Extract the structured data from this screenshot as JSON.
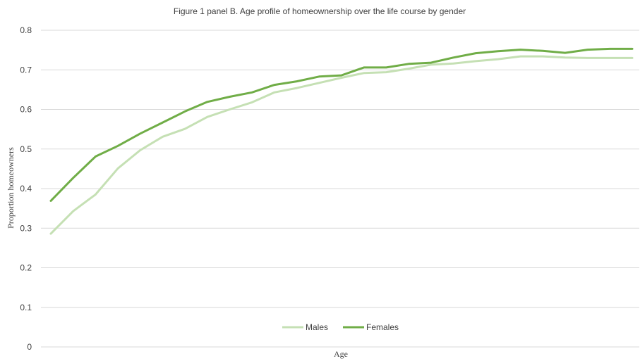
{
  "chart_data": {
    "type": "line",
    "title": "Figure 1 panel B. Age profile of homeownership over the life course by gender",
    "xlabel": "Age",
    "ylabel": "Proportion homeowners",
    "ylim": [
      0,
      0.8
    ],
    "yticks": [
      "0",
      "0.1",
      "0.2",
      "0.3",
      "0.4",
      "0.5",
      "0.6",
      "0.7",
      "0.8"
    ],
    "grid": true,
    "legend_position": "bottom",
    "colors": {
      "Males": "#c5e0b4",
      "Females": "#70ad47"
    },
    "series": [
      {
        "name": "Males",
        "values": [
          0.286,
          0.343,
          0.385,
          0.451,
          0.497,
          0.531,
          0.551,
          0.581,
          0.6,
          0.618,
          0.643,
          0.654,
          0.667,
          0.68,
          0.692,
          0.694,
          0.703,
          0.713,
          0.716,
          0.722,
          0.727,
          0.734,
          0.734,
          0.731,
          0.73,
          0.73,
          0.73
        ]
      },
      {
        "name": "Females",
        "values": [
          0.369,
          0.427,
          0.481,
          0.508,
          0.539,
          0.567,
          0.595,
          0.619,
          0.632,
          0.643,
          0.662,
          0.671,
          0.683,
          0.686,
          0.706,
          0.706,
          0.715,
          0.718,
          0.731,
          0.742,
          0.747,
          0.751,
          0.748,
          0.743,
          0.751,
          0.753,
          0.753
        ]
      }
    ]
  }
}
